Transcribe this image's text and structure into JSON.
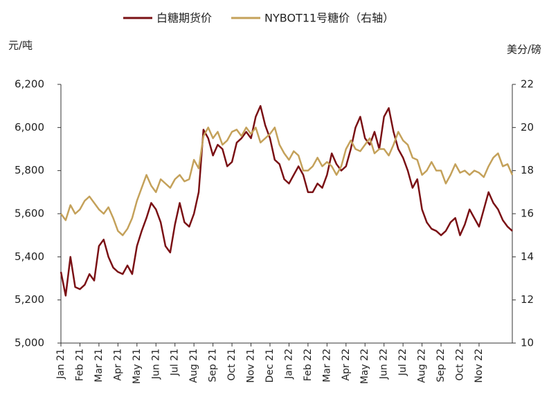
{
  "chart_data": {
    "type": "line",
    "legend": "top",
    "ylabel": "元/吨",
    "y2label": "美分/磅",
    "categories": [
      "Jan 21",
      null,
      null,
      null,
      "Feb 21",
      null,
      null,
      null,
      "Mar 21",
      null,
      null,
      null,
      "Apr 21",
      null,
      null,
      null,
      "May 21",
      null,
      null,
      null,
      "Jun 21",
      null,
      null,
      null,
      "Jul 21",
      null,
      null,
      null,
      "Aug 21",
      null,
      null,
      null,
      "Sep 21",
      null,
      null,
      null,
      "Oct 21",
      null,
      null,
      null,
      "Nov 21",
      null,
      null,
      null,
      "Dec 21",
      null,
      null,
      null,
      "Jan 22",
      null,
      null,
      null,
      "Feb 22",
      null,
      null,
      null,
      "Mar 22",
      null,
      null,
      null,
      "Apr 22",
      null,
      null,
      null,
      "May 22",
      null,
      null,
      null,
      "Jun 22",
      null,
      null,
      null,
      "Jul 22",
      null,
      null,
      null,
      "Aug 22",
      null,
      null,
      null,
      "Sep 22",
      null,
      null,
      null,
      "Oct 22",
      null,
      null,
      null,
      "Nov 22",
      null,
      null,
      null,
      null,
      null,
      null,
      null
    ],
    "series": [
      {
        "name": "白糖期货价",
        "color": "#7a1014",
        "axis": "y",
        "values": [
          5330,
          5220,
          5400,
          5260,
          5250,
          5270,
          5320,
          5290,
          5450,
          5480,
          5400,
          5350,
          5330,
          5320,
          5360,
          5320,
          5450,
          5520,
          5580,
          5650,
          5620,
          5560,
          5450,
          5420,
          5550,
          5650,
          5560,
          5540,
          5600,
          5700,
          5990,
          5950,
          5870,
          5920,
          5900,
          5820,
          5840,
          5930,
          5950,
          5980,
          5950,
          6050,
          6100,
          6010,
          5950,
          5850,
          5830,
          5760,
          5740,
          5780,
          5820,
          5780,
          5700,
          5700,
          5740,
          5720,
          5780,
          5880,
          5830,
          5800,
          5820,
          5900,
          6000,
          6050,
          5950,
          5920,
          5980,
          5900,
          6050,
          6090,
          5980,
          5900,
          5860,
          5800,
          5720,
          5760,
          5620,
          5560,
          5530,
          5520,
          5500,
          5520,
          5560,
          5580,
          5500,
          5550,
          5620,
          5580,
          5540,
          5620,
          5700,
          5650,
          5620,
          5570,
          5540,
          5520
        ]
      },
      {
        "name": "NYBOT11号糖价（右轴）",
        "color": "#c4a15a",
        "axis": "y2",
        "values": [
          16.0,
          15.7,
          16.4,
          16.0,
          16.2,
          16.6,
          16.8,
          16.5,
          16.2,
          16.0,
          16.3,
          15.8,
          15.2,
          15.0,
          15.3,
          15.8,
          16.6,
          17.2,
          17.8,
          17.3,
          17.0,
          17.6,
          17.4,
          17.2,
          17.6,
          17.8,
          17.5,
          17.6,
          18.5,
          18.1,
          19.6,
          20.0,
          19.5,
          19.8,
          19.2,
          19.4,
          19.8,
          19.9,
          19.6,
          20.0,
          19.7,
          20.0,
          19.3,
          19.5,
          19.7,
          20.0,
          19.2,
          18.8,
          18.5,
          18.9,
          18.7,
          18.0,
          18.0,
          18.2,
          18.6,
          18.2,
          18.4,
          18.2,
          17.8,
          18.2,
          19.0,
          19.4,
          19.0,
          18.9,
          19.2,
          19.5,
          18.8,
          19.0,
          19.0,
          18.7,
          19.2,
          19.8,
          19.4,
          19.2,
          18.6,
          18.5,
          17.8,
          18.0,
          18.4,
          18.0,
          18.0,
          17.4,
          17.8,
          18.3,
          17.9,
          18.0,
          17.8,
          18.0,
          17.9,
          17.7,
          18.2,
          18.6,
          18.8,
          18.2,
          18.3,
          17.8
        ]
      }
    ],
    "ylim": [
      5000,
      6200
    ],
    "yticks": [
      {
        "value": 5000,
        "label": "5,000"
      },
      {
        "value": 5200,
        "label": "5,200"
      },
      {
        "value": 5400,
        "label": "5,400"
      },
      {
        "value": 5600,
        "label": "5,600"
      },
      {
        "value": 5800,
        "label": "5,800"
      },
      {
        "value": 6000,
        "label": "6,000"
      },
      {
        "value": 6200,
        "label": "6,200"
      }
    ],
    "y2lim": [
      10,
      22
    ],
    "y2ticks": [
      10,
      12,
      14,
      16,
      18,
      20,
      22
    ],
    "grid": false
  }
}
